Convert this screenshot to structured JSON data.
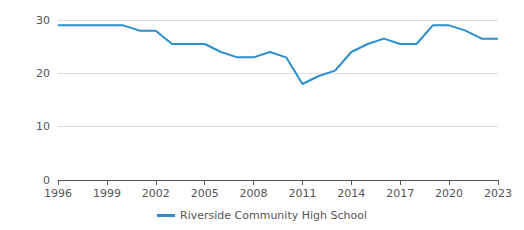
{
  "chart_data": {
    "type": "line",
    "x": [
      1996,
      1997,
      1998,
      1999,
      2000,
      2001,
      2002,
      2003,
      2004,
      2005,
      2006,
      2007,
      2008,
      2009,
      2010,
      2011,
      2012,
      2013,
      2014,
      2015,
      2016,
      2017,
      2018,
      2019,
      2020,
      2021,
      2022,
      2023
    ],
    "series": [
      {
        "name": "Riverside Community High School",
        "color": "#2a8fcc",
        "values": [
          29,
          29,
          29,
          29,
          29,
          28,
          28,
          25.5,
          25.5,
          25.5,
          24,
          23,
          23,
          24,
          23,
          18,
          19.5,
          20.5,
          24,
          25.5,
          26.5,
          25.5,
          25.5,
          29,
          29,
          28,
          26.5,
          26.5
        ]
      }
    ],
    "xlim": [
      1996,
      2023
    ],
    "xticks": [
      1996,
      1999,
      2002,
      2005,
      2008,
      2011,
      2014,
      2017,
      2020,
      2023
    ],
    "ylim": [
      0,
      30
    ],
    "yticks": [
      0,
      10,
      20,
      30
    ],
    "grid": true,
    "legend": "bottom"
  }
}
